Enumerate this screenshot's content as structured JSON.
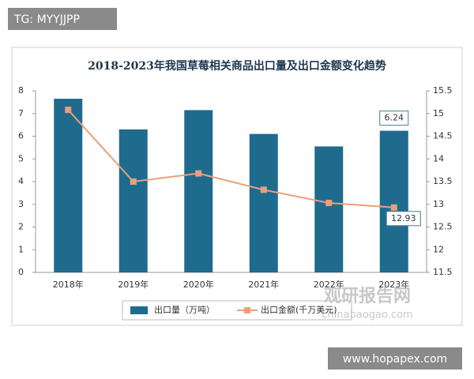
{
  "chart_data": {
    "type": "bar-line",
    "title": "2018-2023年我国草莓相关商品出口量及出口金额变化趋势",
    "categories": [
      "2018年",
      "2019年",
      "2020年",
      "2021年",
      "2022年",
      "2023年"
    ],
    "series": [
      {
        "name": "出口量（万吨）",
        "type": "bar",
        "color": "#1f6b8e",
        "values": [
          7.65,
          6.3,
          7.15,
          6.1,
          5.55,
          6.24
        ]
      },
      {
        "name": "出口金额(千万美元)",
        "type": "line",
        "axis": "y2",
        "color": "#e8a07c",
        "values": [
          15.08,
          13.5,
          13.68,
          13.32,
          13.03,
          12.93
        ]
      }
    ],
    "ylim": [
      0,
      8
    ],
    "yticks": [
      0,
      1,
      2,
      3,
      4,
      5,
      6,
      7,
      8
    ],
    "y2lim": [
      11.5,
      15.5
    ],
    "y2ticks": [
      11.5,
      12,
      12.5,
      13,
      13.5,
      14,
      14.5,
      15,
      15.5
    ],
    "label_last": true,
    "grid": false,
    "legend": "bottom"
  },
  "watermarks": [
    "TG: MYYJJPP",
    "观研报告网",
    "chinabaogao.com",
    "www.hopapex.com"
  ]
}
